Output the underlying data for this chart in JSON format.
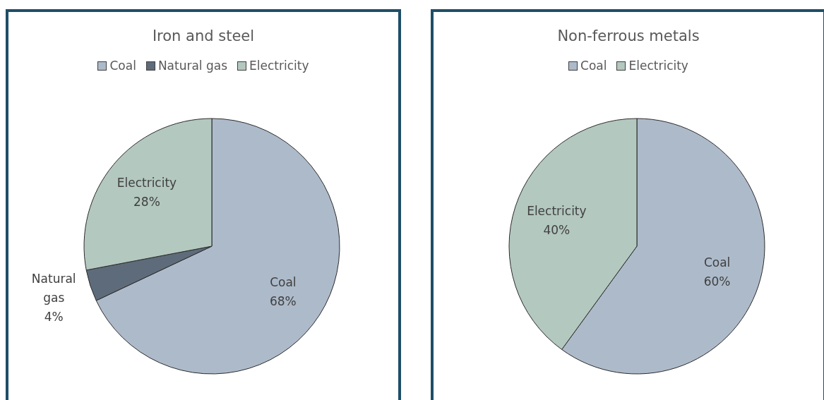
{
  "chart_data": [
    {
      "type": "pie",
      "title": "Iron and steel",
      "categories": [
        "Coal",
        "Natural gas",
        "Electricity"
      ],
      "values": [
        68,
        4,
        28
      ],
      "colors": [
        "#adbaca",
        "#5e6b7a",
        "#b3c8bf"
      ],
      "value_labels": [
        "68%",
        "4%",
        "28%"
      ],
      "legend": "top"
    },
    {
      "type": "pie",
      "title": "Non-ferrous metals",
      "categories": [
        "Coal",
        "Electricity"
      ],
      "values": [
        60,
        40
      ],
      "colors": [
        "#adbaca",
        "#b3c8bf"
      ],
      "value_labels": [
        "60%",
        "40%"
      ],
      "legend": "top"
    }
  ]
}
